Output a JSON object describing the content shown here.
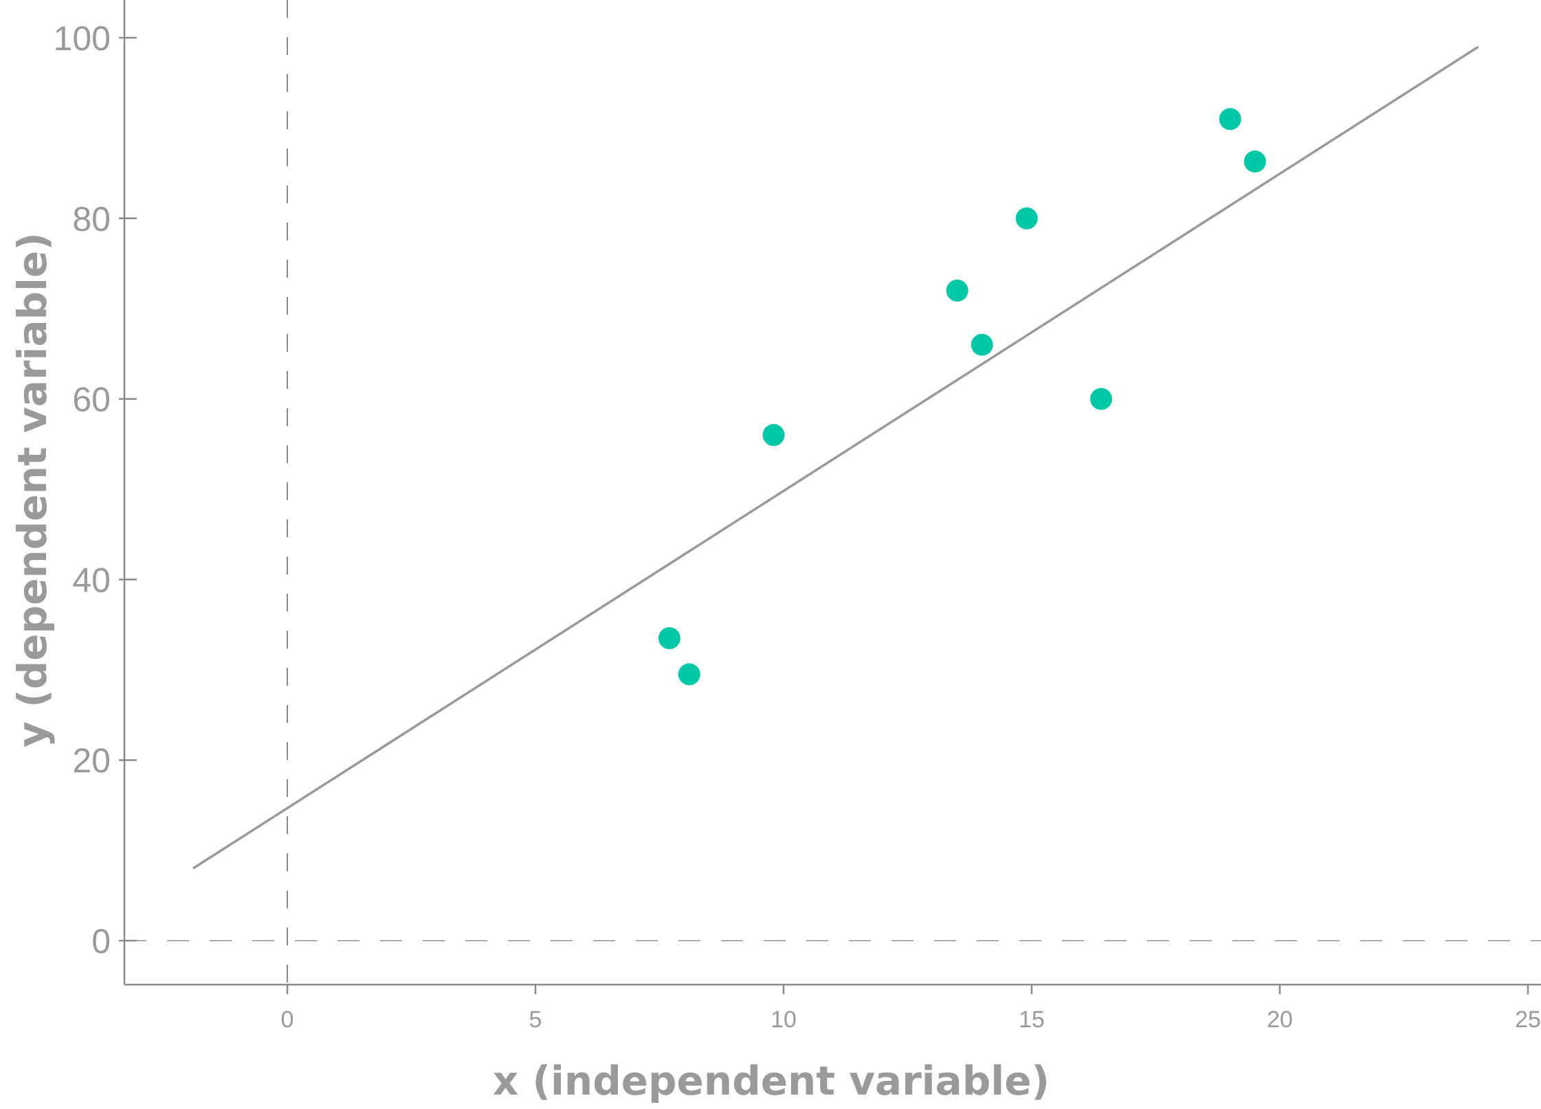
{
  "chart_data": {
    "type": "scatter",
    "title": "",
    "xlabel": "x (independent variable)",
    "ylabel": "y (dependent variable)",
    "xlim": [
      -3.3,
      25
    ],
    "ylim": [
      -5,
      104
    ],
    "x_ticks": [
      0,
      5,
      10,
      15,
      20,
      25
    ],
    "y_ticks": [
      0,
      20,
      40,
      60,
      80,
      100
    ],
    "grid": false,
    "reference_lines": [
      {
        "orientation": "vertical",
        "value": 0,
        "style": "dashed"
      },
      {
        "orientation": "horizontal",
        "value": 0,
        "style": "dashed"
      }
    ],
    "series": [
      {
        "kind": "points",
        "points": [
          {
            "x": 7.7,
            "y": 33.5
          },
          {
            "x": 8.1,
            "y": 29.5
          },
          {
            "x": 9.8,
            "y": 56
          },
          {
            "x": 13.5,
            "y": 72
          },
          {
            "x": 14.0,
            "y": 66
          },
          {
            "x": 14.9,
            "y": 80
          },
          {
            "x": 16.4,
            "y": 60
          },
          {
            "x": 19.0,
            "y": 91
          },
          {
            "x": 19.5,
            "y": 86.3
          }
        ]
      },
      {
        "kind": "regression-line",
        "x": [
          -1.9,
          24.0
        ],
        "y": [
          8,
          99
        ]
      }
    ],
    "colors": {
      "points": "#00c7a6",
      "line": "#999999",
      "axis": "#8a8a8a",
      "reference": "#aaaaaa",
      "text": "#9a9a9a"
    }
  }
}
